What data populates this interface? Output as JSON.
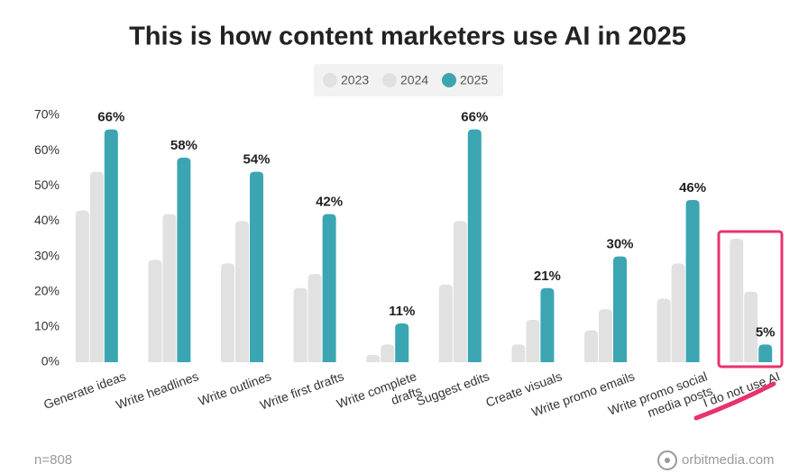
{
  "chart_data": {
    "type": "bar",
    "title": "This is how content marketers use AI in 2025",
    "categories": [
      [
        "Generate ideas"
      ],
      [
        "Write headlines"
      ],
      [
        "Write outlines"
      ],
      [
        "Write first drafts"
      ],
      [
        "Write complete",
        "drafts"
      ],
      [
        "Suggest edits"
      ],
      [
        "Create visuals"
      ],
      [
        "Write promo emails"
      ],
      [
        "Write promo social",
        "media posts"
      ],
      [
        "I do not use AI"
      ]
    ],
    "series": [
      {
        "name": "2023",
        "color": "#e1e1e1",
        "values": [
          43,
          29,
          28,
          21,
          2,
          22,
          5,
          9,
          18,
          35
        ]
      },
      {
        "name": "2024",
        "color": "#e1e1e1",
        "values": [
          54,
          42,
          40,
          25,
          5,
          40,
          12,
          15,
          28,
          20
        ]
      },
      {
        "name": "2025",
        "color": "#3ba6b2",
        "values": [
          66,
          58,
          54,
          42,
          11,
          66,
          21,
          30,
          46,
          5
        ],
        "value_labels": [
          "66%",
          "58%",
          "54%",
          "42%",
          "11%",
          "66%",
          "21%",
          "30%",
          "46%",
          "5%"
        ]
      }
    ],
    "ylim": [
      0,
      70
    ],
    "yticks": [
      {
        "value": 0,
        "label": "0%"
      },
      {
        "value": 10,
        "label": "10%"
      },
      {
        "value": 20,
        "label": "20%"
      },
      {
        "value": 30,
        "label": "30%"
      },
      {
        "value": 40,
        "label": "40%"
      },
      {
        "value": 50,
        "label": "50%"
      },
      {
        "value": 60,
        "label": "60%"
      },
      {
        "value": 70,
        "label": "70%"
      }
    ],
    "grid": false,
    "note": "n=808",
    "source": "orbitmedia.com"
  }
}
